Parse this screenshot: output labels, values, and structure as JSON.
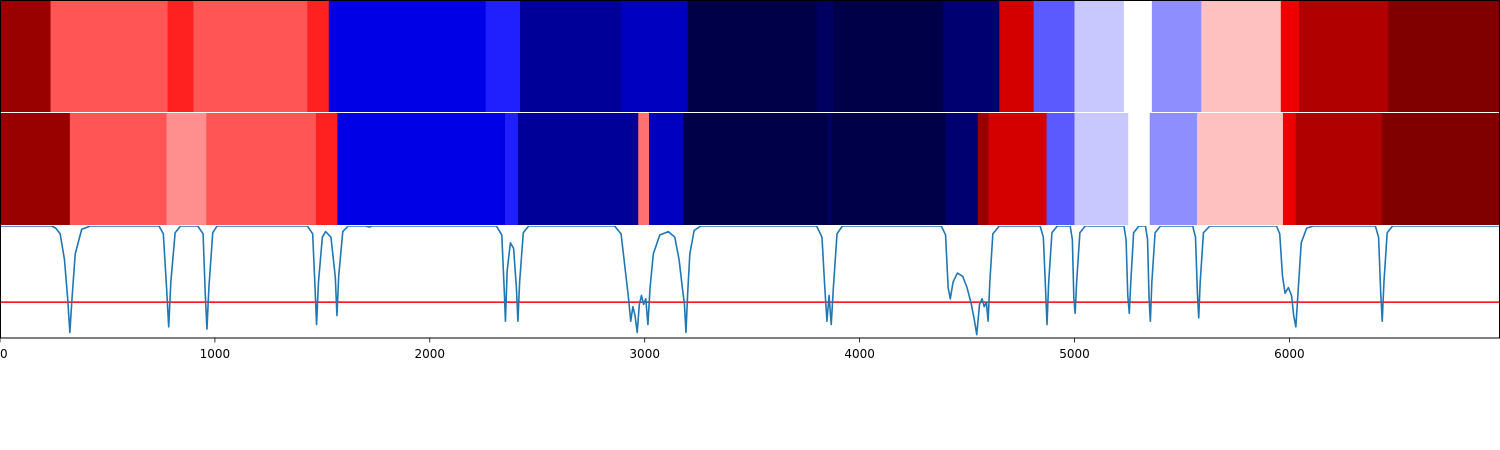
{
  "chart_data": {
    "type": "heatmap",
    "xlim": [
      0,
      6980
    ],
    "x_ticks": [
      0,
      1000,
      2000,
      3000,
      4000,
      5000,
      6000
    ],
    "x_tick_labels": [
      "0",
      "1000",
      "2000",
      "3000",
      "4000",
      "5000",
      "6000"
    ],
    "colormap": "seismic",
    "rows": [
      {
        "segments": [
          {
            "x0": 0,
            "x1": 235,
            "color": "#990000"
          },
          {
            "x0": 235,
            "x1": 780,
            "color": "#ff5555"
          },
          {
            "x0": 780,
            "x1": 900,
            "color": "#ff2020"
          },
          {
            "x0": 900,
            "x1": 1430,
            "color": "#ff5555"
          },
          {
            "x0": 1430,
            "x1": 1530,
            "color": "#ff2020"
          },
          {
            "x0": 1530,
            "x1": 2260,
            "color": "#0000e6"
          },
          {
            "x0": 2260,
            "x1": 2420,
            "color": "#2020ff"
          },
          {
            "x0": 2420,
            "x1": 2890,
            "color": "#000099"
          },
          {
            "x0": 2890,
            "x1": 3200,
            "color": "#0000c0"
          },
          {
            "x0": 3200,
            "x1": 3800,
            "color": "#000048"
          },
          {
            "x0": 3800,
            "x1": 3880,
            "color": "#000060"
          },
          {
            "x0": 3880,
            "x1": 4390,
            "color": "#000048"
          },
          {
            "x0": 4390,
            "x1": 4650,
            "color": "#000070"
          },
          {
            "x0": 4650,
            "x1": 4810,
            "color": "#d40000"
          },
          {
            "x0": 4810,
            "x1": 5000,
            "color": "#5a5aff"
          },
          {
            "x0": 5000,
            "x1": 5230,
            "color": "#c8c8ff"
          },
          {
            "x0": 5230,
            "x1": 5360,
            "color": "#ffffff"
          },
          {
            "x0": 5360,
            "x1": 5590,
            "color": "#8e8eff"
          },
          {
            "x0": 5590,
            "x1": 5960,
            "color": "#ffc0c0"
          },
          {
            "x0": 5960,
            "x1": 6045,
            "color": "#ee0000"
          },
          {
            "x0": 6045,
            "x1": 6460,
            "color": "#b00000"
          },
          {
            "x0": 6460,
            "x1": 6980,
            "color": "#800000"
          }
        ]
      },
      {
        "segments": [
          {
            "x0": 0,
            "x1": 325,
            "color": "#990000"
          },
          {
            "x0": 325,
            "x1": 775,
            "color": "#ff5555"
          },
          {
            "x0": 775,
            "x1": 960,
            "color": "#ff8e8e"
          },
          {
            "x0": 960,
            "x1": 1470,
            "color": "#ff5555"
          },
          {
            "x0": 1470,
            "x1": 1570,
            "color": "#ff2020"
          },
          {
            "x0": 1570,
            "x1": 2350,
            "color": "#0000e6"
          },
          {
            "x0": 2350,
            "x1": 2410,
            "color": "#2020ff"
          },
          {
            "x0": 2410,
            "x1": 2970,
            "color": "#000099"
          },
          {
            "x0": 2970,
            "x1": 3020,
            "color": "#ff7070"
          },
          {
            "x0": 3020,
            "x1": 3180,
            "color": "#0000c0"
          },
          {
            "x0": 3180,
            "x1": 3850,
            "color": "#000048"
          },
          {
            "x0": 3850,
            "x1": 3870,
            "color": "#000060"
          },
          {
            "x0": 3870,
            "x1": 4400,
            "color": "#000048"
          },
          {
            "x0": 4400,
            "x1": 4550,
            "color": "#000070"
          },
          {
            "x0": 4550,
            "x1": 4600,
            "color": "#990000"
          },
          {
            "x0": 4600,
            "x1": 4870,
            "color": "#d40000"
          },
          {
            "x0": 4870,
            "x1": 5000,
            "color": "#5a5aff"
          },
          {
            "x0": 5000,
            "x1": 5250,
            "color": "#c8c8ff"
          },
          {
            "x0": 5250,
            "x1": 5350,
            "color": "#ffffff"
          },
          {
            "x0": 5350,
            "x1": 5570,
            "color": "#8e8eff"
          },
          {
            "x0": 5570,
            "x1": 5970,
            "color": "#ffc0c0"
          },
          {
            "x0": 5970,
            "x1": 6030,
            "color": "#ee0000"
          },
          {
            "x0": 6030,
            "x1": 6430,
            "color": "#b00000"
          },
          {
            "x0": 6430,
            "x1": 6980,
            "color": "#800000"
          }
        ]
      }
    ],
    "line_series": {
      "color": "#1f77b4",
      "ylim": [
        0,
        1
      ],
      "points": [
        [
          0,
          1.0
        ],
        [
          240,
          1.0
        ],
        [
          260,
          0.98
        ],
        [
          280,
          0.93
        ],
        [
          300,
          0.7
        ],
        [
          315,
          0.35
        ],
        [
          325,
          0.05
        ],
        [
          335,
          0.35
        ],
        [
          350,
          0.75
        ],
        [
          380,
          0.97
        ],
        [
          420,
          1.0
        ],
        [
          740,
          1.0
        ],
        [
          760,
          0.93
        ],
        [
          775,
          0.45
        ],
        [
          785,
          0.1
        ],
        [
          795,
          0.5
        ],
        [
          815,
          0.94
        ],
        [
          840,
          1.0
        ],
        [
          920,
          1.0
        ],
        [
          945,
          0.93
        ],
        [
          955,
          0.4
        ],
        [
          963,
          0.08
        ],
        [
          972,
          0.45
        ],
        [
          990,
          0.94
        ],
        [
          1010,
          1.0
        ],
        [
          1430,
          1.0
        ],
        [
          1455,
          0.93
        ],
        [
          1466,
          0.45
        ],
        [
          1473,
          0.12
        ],
        [
          1482,
          0.5
        ],
        [
          1500,
          0.9
        ],
        [
          1515,
          0.95
        ],
        [
          1540,
          0.9
        ],
        [
          1560,
          0.55
        ],
        [
          1568,
          0.2
        ],
        [
          1576,
          0.55
        ],
        [
          1595,
          0.95
        ],
        [
          1620,
          1.0
        ],
        [
          1700,
          1.0
        ],
        [
          1720,
          0.99
        ],
        [
          1730,
          1.0
        ],
        [
          2310,
          1.0
        ],
        [
          2335,
          0.92
        ],
        [
          2347,
          0.4
        ],
        [
          2352,
          0.15
        ],
        [
          2360,
          0.6
        ],
        [
          2375,
          0.85
        ],
        [
          2390,
          0.8
        ],
        [
          2403,
          0.45
        ],
        [
          2410,
          0.15
        ],
        [
          2418,
          0.5
        ],
        [
          2435,
          0.94
        ],
        [
          2460,
          1.0
        ],
        [
          2860,
          1.0
        ],
        [
          2890,
          0.93
        ],
        [
          2910,
          0.6
        ],
        [
          2925,
          0.35
        ],
        [
          2935,
          0.15
        ],
        [
          2945,
          0.28
        ],
        [
          2955,
          0.2
        ],
        [
          2965,
          0.05
        ],
        [
          2975,
          0.3
        ],
        [
          2985,
          0.38
        ],
        [
          2995,
          0.3
        ],
        [
          3005,
          0.35
        ],
        [
          3015,
          0.12
        ],
        [
          3025,
          0.45
        ],
        [
          3040,
          0.75
        ],
        [
          3070,
          0.92
        ],
        [
          3110,
          0.95
        ],
        [
          3140,
          0.9
        ],
        [
          3160,
          0.7
        ],
        [
          3175,
          0.45
        ],
        [
          3185,
          0.3
        ],
        [
          3192,
          0.05
        ],
        [
          3200,
          0.4
        ],
        [
          3210,
          0.75
        ],
        [
          3230,
          0.96
        ],
        [
          3260,
          1.0
        ],
        [
          3800,
          1.0
        ],
        [
          3825,
          0.9
        ],
        [
          3838,
          0.45
        ],
        [
          3848,
          0.15
        ],
        [
          3858,
          0.38
        ],
        [
          3868,
          0.12
        ],
        [
          3878,
          0.45
        ],
        [
          3895,
          0.93
        ],
        [
          3920,
          1.0
        ],
        [
          4380,
          1.0
        ],
        [
          4400,
          0.92
        ],
        [
          4412,
          0.45
        ],
        [
          4422,
          0.35
        ],
        [
          4435,
          0.5
        ],
        [
          4455,
          0.58
        ],
        [
          4480,
          0.55
        ],
        [
          4500,
          0.45
        ],
        [
          4520,
          0.3
        ],
        [
          4535,
          0.15
        ],
        [
          4545,
          0.03
        ],
        [
          4558,
          0.3
        ],
        [
          4570,
          0.35
        ],
        [
          4580,
          0.28
        ],
        [
          4590,
          0.32
        ],
        [
          4598,
          0.15
        ],
        [
          4606,
          0.5
        ],
        [
          4620,
          0.93
        ],
        [
          4650,
          1.0
        ],
        [
          4840,
          1.0
        ],
        [
          4855,
          0.9
        ],
        [
          4865,
          0.45
        ],
        [
          4872,
          0.12
        ],
        [
          4880,
          0.5
        ],
        [
          4895,
          0.94
        ],
        [
          4920,
          1.0
        ],
        [
          4980,
          1.0
        ],
        [
          4990,
          0.88
        ],
        [
          4997,
          0.35
        ],
        [
          5003,
          0.22
        ],
        [
          5010,
          0.5
        ],
        [
          5025,
          0.94
        ],
        [
          5050,
          1.0
        ],
        [
          5230,
          1.0
        ],
        [
          5240,
          0.88
        ],
        [
          5248,
          0.38
        ],
        [
          5255,
          0.22
        ],
        [
          5262,
          0.5
        ],
        [
          5275,
          0.94
        ],
        [
          5300,
          1.0
        ],
        [
          5330,
          1.0
        ],
        [
          5340,
          0.88
        ],
        [
          5347,
          0.35
        ],
        [
          5353,
          0.15
        ],
        [
          5360,
          0.5
        ],
        [
          5375,
          0.94
        ],
        [
          5400,
          1.0
        ],
        [
          5550,
          1.0
        ],
        [
          5563,
          0.9
        ],
        [
          5572,
          0.4
        ],
        [
          5578,
          0.18
        ],
        [
          5585,
          0.5
        ],
        [
          5600,
          0.94
        ],
        [
          5630,
          1.0
        ],
        [
          5940,
          1.0
        ],
        [
          5955,
          0.93
        ],
        [
          5968,
          0.55
        ],
        [
          5980,
          0.4
        ],
        [
          5995,
          0.45
        ],
        [
          6010,
          0.38
        ],
        [
          6020,
          0.2
        ],
        [
          6030,
          0.1
        ],
        [
          6040,
          0.4
        ],
        [
          6055,
          0.85
        ],
        [
          6080,
          0.98
        ],
        [
          6110,
          1.0
        ],
        [
          6400,
          1.0
        ],
        [
          6415,
          0.9
        ],
        [
          6425,
          0.4
        ],
        [
          6432,
          0.15
        ],
        [
          6440,
          0.5
        ],
        [
          6455,
          0.94
        ],
        [
          6480,
          1.0
        ],
        [
          6980,
          1.0
        ]
      ]
    },
    "hline": {
      "y": 0.32,
      "color": "#ff0000"
    }
  }
}
